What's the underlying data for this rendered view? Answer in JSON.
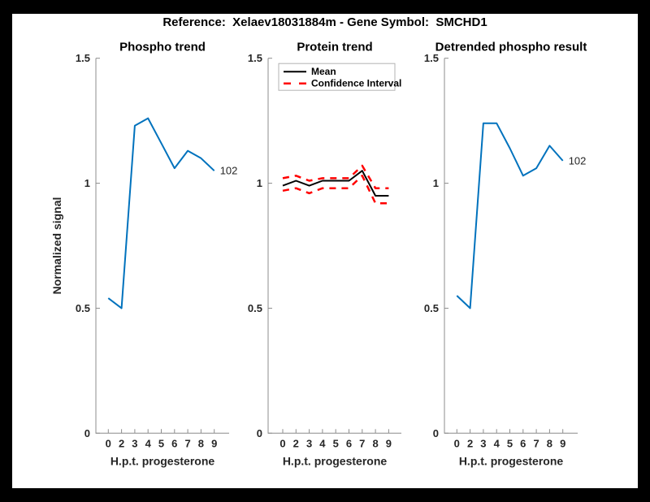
{
  "figure": {
    "title": "Reference:  Xelaev18031884m - Gene Symbol:  SMCHD1"
  },
  "colors": {
    "blue": "#0072BD",
    "red": "#FF0000",
    "black": "#000000",
    "axis": "#8c8c8c",
    "text": "#262626",
    "legend_border": "#b3b3b3",
    "figure_background": "#000000",
    "canvas_background": "#ffffff"
  },
  "chart_data": [
    {
      "type": "line",
      "title": "Phospho trend",
      "xlabel": "H.p.t. progesterone",
      "ylabel": "Normalized signal",
      "categories": [
        "0",
        "2",
        "3",
        "4",
        "5",
        "6",
        "7",
        "8",
        "9"
      ],
      "ylim": [
        0,
        1.5
      ],
      "yticks": [
        0,
        0.5,
        1,
        1.5
      ],
      "grid": false,
      "end_label": "102",
      "series": [
        {
          "name": "102",
          "color": "#0072BD",
          "dash": "solid",
          "width": 2,
          "values": [
            0.54,
            0.5,
            1.23,
            1.26,
            1.16,
            1.06,
            1.13,
            1.1,
            1.05
          ]
        }
      ]
    },
    {
      "type": "line",
      "title": "Protein trend",
      "xlabel": "H.p.t. progesterone",
      "ylabel": "",
      "categories": [
        "0",
        "2",
        "3",
        "4",
        "5",
        "6",
        "7",
        "8",
        "9"
      ],
      "ylim": [
        0,
        1.5
      ],
      "yticks": [
        0,
        0.5,
        1,
        1.5
      ],
      "grid": false,
      "legend": {
        "position": "northwest",
        "entries": [
          {
            "label": "Mean",
            "color": "#000000",
            "dash": "solid"
          },
          {
            "label": "Confidence Interval",
            "color": "#FF0000",
            "dash": "dashed"
          }
        ]
      },
      "series": [
        {
          "name": "Mean",
          "color": "#000000",
          "dash": "solid",
          "width": 2,
          "values": [
            0.99,
            1.01,
            0.99,
            1.01,
            1.01,
            1.01,
            1.05,
            0.95,
            0.95
          ]
        },
        {
          "name": "CI upper",
          "color": "#FF0000",
          "dash": "dashed",
          "width": 2.5,
          "values": [
            1.02,
            1.03,
            1.01,
            1.02,
            1.02,
            1.02,
            1.07,
            0.98,
            0.98
          ]
        },
        {
          "name": "CI lower",
          "color": "#FF0000",
          "dash": "dashed",
          "width": 2.5,
          "values": [
            0.97,
            0.98,
            0.96,
            0.98,
            0.98,
            0.98,
            1.03,
            0.92,
            0.92
          ]
        }
      ]
    },
    {
      "type": "line",
      "title": "Detrended phospho result",
      "xlabel": "H.p.t. progesterone",
      "ylabel": "",
      "categories": [
        "0",
        "2",
        "3",
        "4",
        "5",
        "6",
        "7",
        "8",
        "9"
      ],
      "ylim": [
        0,
        1.5
      ],
      "yticks": [
        0,
        0.5,
        1,
        1.5
      ],
      "grid": false,
      "end_label": "102",
      "series": [
        {
          "name": "102",
          "color": "#0072BD",
          "dash": "solid",
          "width": 2,
          "values": [
            0.55,
            0.5,
            1.24,
            1.24,
            1.14,
            1.03,
            1.06,
            1.15,
            1.09
          ]
        }
      ]
    }
  ]
}
